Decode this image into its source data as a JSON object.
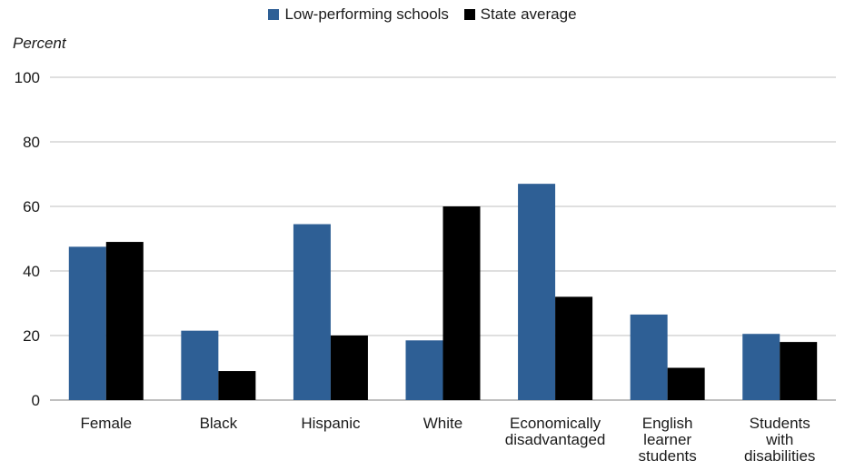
{
  "chart_data": {
    "type": "bar",
    "ylabel": "Percent",
    "ylim": [
      0,
      100
    ],
    "yticks": [
      0,
      20,
      40,
      60,
      80,
      100
    ],
    "grid": true,
    "legend": "top-center",
    "categories": [
      [
        "Female"
      ],
      [
        "Black"
      ],
      [
        "Hispanic"
      ],
      [
        "White"
      ],
      [
        "Economically",
        "disadvantaged"
      ],
      [
        "English",
        "learner",
        "students"
      ],
      [
        "Students",
        "with",
        "disabilities"
      ]
    ],
    "series": [
      {
        "name": "Low-performing schools",
        "color": "#2e5f95",
        "values": [
          47.5,
          21.5,
          54.5,
          18.5,
          67,
          26.5,
          20.5
        ]
      },
      {
        "name": "State average",
        "color": "#000000",
        "values": [
          49,
          9,
          20,
          60,
          32,
          10,
          18
        ]
      }
    ]
  }
}
